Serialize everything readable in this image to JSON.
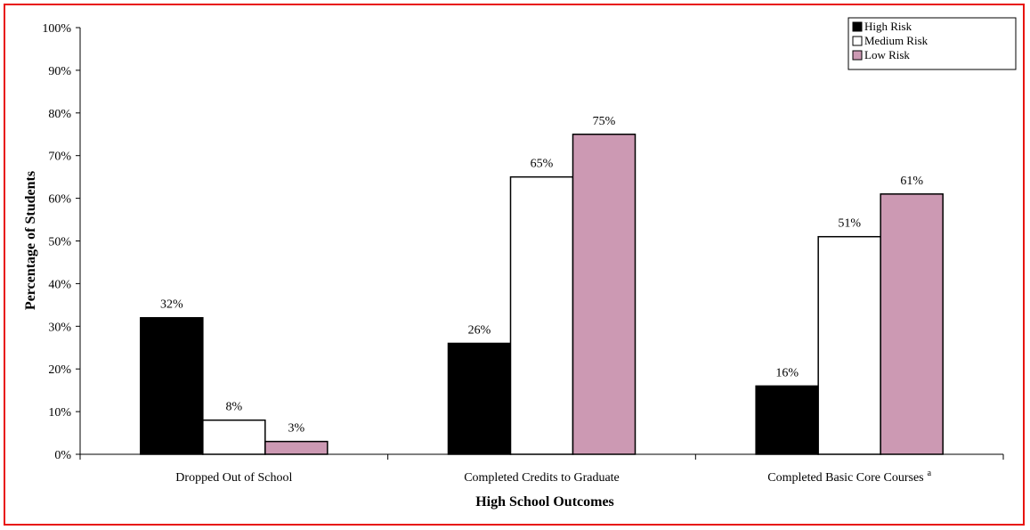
{
  "chart_data": {
    "type": "bar",
    "title": "",
    "xlabel": "High School Outcomes",
    "ylabel": "Percentage of Students",
    "ylim": [
      0,
      100
    ],
    "y_ticks": [
      "0%",
      "10%",
      "20%",
      "30%",
      "40%",
      "50%",
      "60%",
      "70%",
      "80%",
      "90%",
      "100%"
    ],
    "categories": [
      "Dropped Out of School",
      "Completed Credits to Graduate",
      "Completed Basic Core Courses"
    ],
    "category_superscripts": [
      "",
      "",
      "a"
    ],
    "series": [
      {
        "name": "High Risk",
        "color": "#000000",
        "values": [
          32,
          26,
          16
        ],
        "labels": [
          "32%",
          "26%",
          "16%"
        ]
      },
      {
        "name": "Medium Risk",
        "color": "#ffffff",
        "values": [
          8,
          65,
          51
        ],
        "labels": [
          "8%",
          "65%",
          "51%"
        ]
      },
      {
        "name": "Low Risk",
        "color": "#cc99b3",
        "values": [
          3,
          75,
          61
        ],
        "labels": [
          "3%",
          "75%",
          "61%"
        ]
      }
    ],
    "legend_position": "top-right",
    "grid": false,
    "frame_color": "#e8140f"
  }
}
